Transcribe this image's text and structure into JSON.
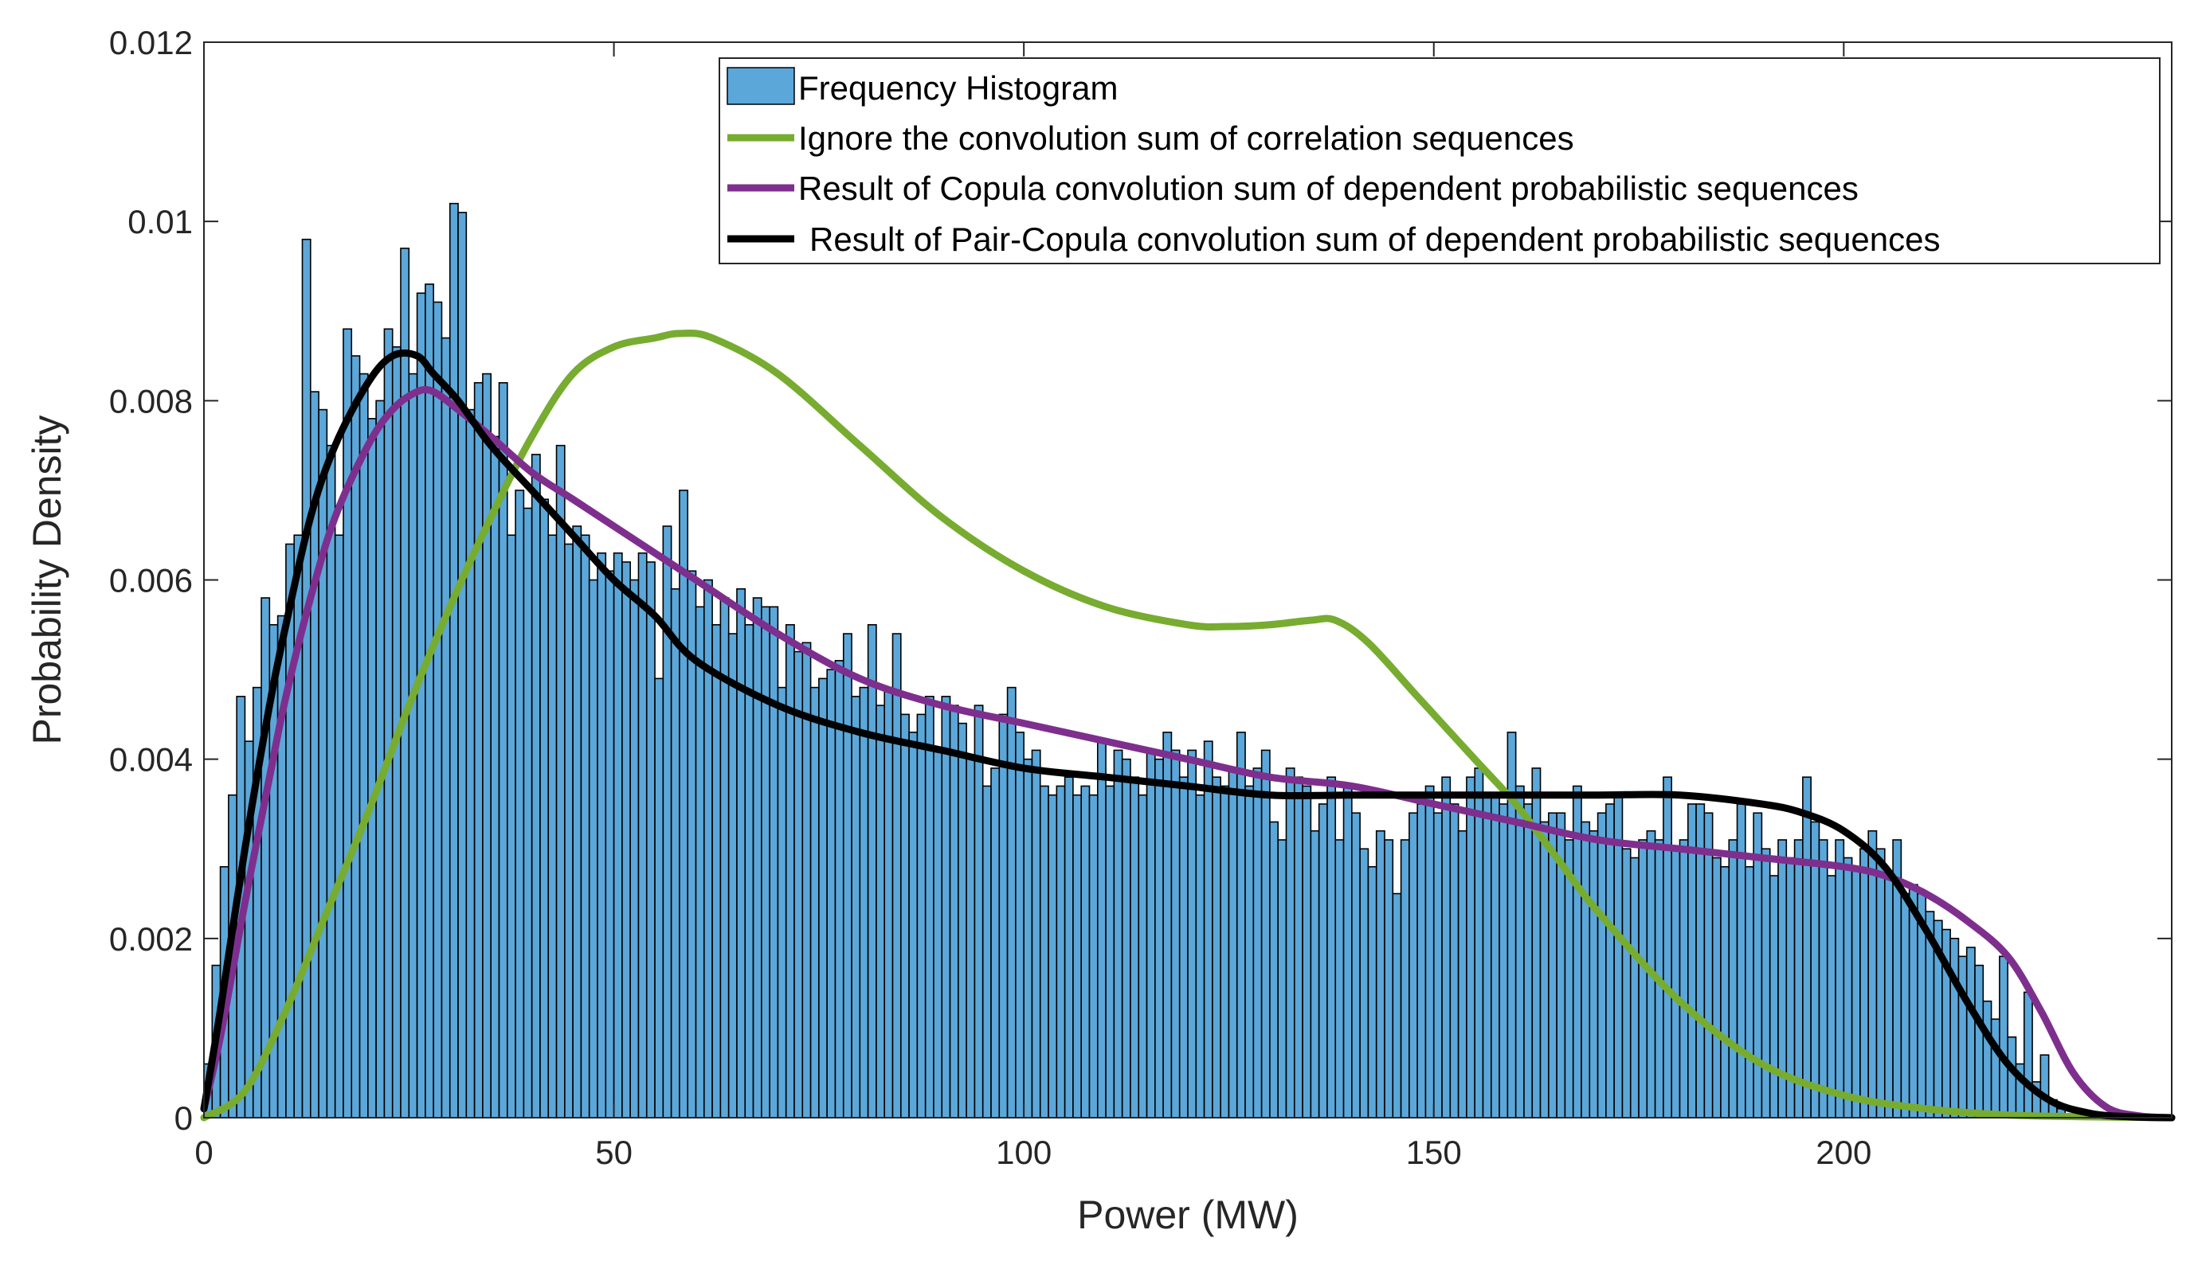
{
  "chart_data": {
    "type": "bar",
    "xlabel": "Power (MW)",
    "ylabel": "Probability Density",
    "xlim": [
      0,
      240
    ],
    "ylim": [
      0,
      0.012
    ],
    "x_ticks": [
      0,
      50,
      100,
      150,
      200
    ],
    "x_tick_labels": [
      "0",
      "50",
      "100",
      "150",
      "200"
    ],
    "y_ticks": [
      0,
      0.002,
      0.004,
      0.006,
      0.008,
      0.01,
      0.012
    ],
    "y_tick_labels": [
      "0",
      "0.002",
      "0.004",
      "0.006",
      "0.008",
      "0.01",
      "0.012"
    ],
    "legend_position": "top-right",
    "histogram": {
      "name": "Frequency Histogram",
      "color": "#5ba7d9",
      "edge_color": "#000000",
      "bin_width": 1,
      "bins": [
        [
          0,
          0.0006
        ],
        [
          1,
          0.0017
        ],
        [
          2,
          0.0028
        ],
        [
          3,
          0.0036
        ],
        [
          4,
          0.0047
        ],
        [
          5,
          0.0042
        ],
        [
          6,
          0.0048
        ],
        [
          7,
          0.0058
        ],
        [
          8,
          0.0055
        ],
        [
          9,
          0.0056
        ],
        [
          10,
          0.0064
        ],
        [
          11,
          0.0065
        ],
        [
          12,
          0.0098
        ],
        [
          13,
          0.0081
        ],
        [
          14,
          0.0079
        ],
        [
          15,
          0.0075
        ],
        [
          16,
          0.0065
        ],
        [
          17,
          0.0088
        ],
        [
          18,
          0.0085
        ],
        [
          19,
          0.0083
        ],
        [
          20,
          0.0078
        ],
        [
          21,
          0.008
        ],
        [
          22,
          0.0088
        ],
        [
          23,
          0.0086
        ],
        [
          24,
          0.0097
        ],
        [
          25,
          0.0083
        ],
        [
          26,
          0.0092
        ],
        [
          27,
          0.0093
        ],
        [
          28,
          0.0091
        ],
        [
          29,
          0.0087
        ],
        [
          30,
          0.0102
        ],
        [
          31,
          0.0101
        ],
        [
          32,
          0.0079
        ],
        [
          33,
          0.0082
        ],
        [
          34,
          0.0083
        ],
        [
          35,
          0.0076
        ],
        [
          36,
          0.0082
        ],
        [
          37,
          0.0065
        ],
        [
          38,
          0.007
        ],
        [
          39,
          0.0068
        ],
        [
          40,
          0.0074
        ],
        [
          41,
          0.0069
        ],
        [
          42,
          0.0065
        ],
        [
          43,
          0.0075
        ],
        [
          44,
          0.0064
        ],
        [
          45,
          0.0066
        ],
        [
          46,
          0.0065
        ],
        [
          47,
          0.006
        ],
        [
          48,
          0.0063
        ],
        [
          49,
          0.0061
        ],
        [
          50,
          0.0063
        ],
        [
          51,
          0.0062
        ],
        [
          52,
          0.006
        ],
        [
          53,
          0.0063
        ],
        [
          54,
          0.0062
        ],
        [
          55,
          0.0049
        ],
        [
          56,
          0.0066
        ],
        [
          57,
          0.0059
        ],
        [
          58,
          0.007
        ],
        [
          59,
          0.0061
        ],
        [
          60,
          0.0057
        ],
        [
          61,
          0.006
        ],
        [
          62,
          0.0055
        ],
        [
          63,
          0.0058
        ],
        [
          64,
          0.0054
        ],
        [
          65,
          0.0059
        ],
        [
          66,
          0.0055
        ],
        [
          67,
          0.0058
        ],
        [
          68,
          0.0057
        ],
        [
          69,
          0.0057
        ],
        [
          70,
          0.0048
        ],
        [
          71,
          0.0055
        ],
        [
          72,
          0.0052
        ],
        [
          73,
          0.0053
        ],
        [
          74,
          0.0048
        ],
        [
          75,
          0.0049
        ],
        [
          76,
          0.005
        ],
        [
          77,
          0.0051
        ],
        [
          78,
          0.0054
        ],
        [
          79,
          0.0047
        ],
        [
          80,
          0.0048
        ],
        [
          81,
          0.0055
        ],
        [
          82,
          0.0046
        ],
        [
          83,
          0.0048
        ],
        [
          84,
          0.0054
        ],
        [
          85,
          0.0045
        ],
        [
          86,
          0.0043
        ],
        [
          87,
          0.0045
        ],
        [
          88,
          0.0047
        ],
        [
          89,
          0.0041
        ],
        [
          90,
          0.0047
        ],
        [
          91,
          0.0046
        ],
        [
          92,
          0.0044
        ],
        [
          93,
          0.004
        ],
        [
          94,
          0.0046
        ],
        [
          95,
          0.0037
        ],
        [
          96,
          0.0039
        ],
        [
          97,
          0.0045
        ],
        [
          98,
          0.0048
        ],
        [
          99,
          0.0043
        ],
        [
          100,
          0.004
        ],
        [
          101,
          0.0041
        ],
        [
          102,
          0.0037
        ],
        [
          103,
          0.0036
        ],
        [
          104,
          0.0037
        ],
        [
          105,
          0.0038
        ],
        [
          106,
          0.0036
        ],
        [
          107,
          0.0037
        ],
        [
          108,
          0.0036
        ],
        [
          109,
          0.0042
        ],
        [
          110,
          0.0037
        ],
        [
          111,
          0.0041
        ],
        [
          112,
          0.004
        ],
        [
          113,
          0.0038
        ],
        [
          114,
          0.0036
        ],
        [
          115,
          0.0041
        ],
        [
          116,
          0.004
        ],
        [
          117,
          0.0043
        ],
        [
          118,
          0.0041
        ],
        [
          119,
          0.0038
        ],
        [
          120,
          0.0041
        ],
        [
          121,
          0.0036
        ],
        [
          122,
          0.0042
        ],
        [
          123,
          0.0038
        ],
        [
          124,
          0.0037
        ],
        [
          125,
          0.0039
        ],
        [
          126,
          0.0043
        ],
        [
          127,
          0.0037
        ],
        [
          128,
          0.0039
        ],
        [
          129,
          0.0041
        ],
        [
          130,
          0.0033
        ],
        [
          131,
          0.0031
        ],
        [
          132,
          0.0039
        ],
        [
          133,
          0.0038
        ],
        [
          134,
          0.0037
        ],
        [
          135,
          0.0032
        ],
        [
          136,
          0.0035
        ],
        [
          137,
          0.0038
        ],
        [
          138,
          0.0031
        ],
        [
          139,
          0.0037
        ],
        [
          140,
          0.0034
        ],
        [
          141,
          0.003
        ],
        [
          142,
          0.0028
        ],
        [
          143,
          0.0032
        ],
        [
          144,
          0.0031
        ],
        [
          145,
          0.0025
        ],
        [
          146,
          0.0031
        ],
        [
          147,
          0.0034
        ],
        [
          148,
          0.0035
        ],
        [
          149,
          0.0037
        ],
        [
          150,
          0.0034
        ],
        [
          151,
          0.0038
        ],
        [
          152,
          0.0035
        ],
        [
          153,
          0.0032
        ],
        [
          154,
          0.0038
        ],
        [
          155,
          0.0039
        ],
        [
          156,
          0.0036
        ],
        [
          157,
          0.0036
        ],
        [
          158,
          0.0035
        ],
        [
          159,
          0.0043
        ],
        [
          160,
          0.0037
        ],
        [
          161,
          0.0035
        ],
        [
          162,
          0.0039
        ],
        [
          163,
          0.0033
        ],
        [
          164,
          0.0034
        ],
        [
          165,
          0.0034
        ],
        [
          166,
          0.0031
        ],
        [
          167,
          0.0037
        ],
        [
          168,
          0.0033
        ],
        [
          169,
          0.0032
        ],
        [
          170,
          0.0034
        ],
        [
          171,
          0.0035
        ],
        [
          172,
          0.0036
        ],
        [
          173,
          0.003
        ],
        [
          174,
          0.0029
        ],
        [
          175,
          0.0031
        ],
        [
          176,
          0.0032
        ],
        [
          177,
          0.0031
        ],
        [
          178,
          0.0038
        ],
        [
          179,
          0.003
        ],
        [
          180,
          0.0031
        ],
        [
          181,
          0.0035
        ],
        [
          182,
          0.0035
        ],
        [
          183,
          0.0034
        ],
        [
          184,
          0.0029
        ],
        [
          185,
          0.0028
        ],
        [
          186,
          0.0031
        ],
        [
          187,
          0.0035
        ],
        [
          188,
          0.0028
        ],
        [
          189,
          0.0034
        ],
        [
          190,
          0.003
        ],
        [
          191,
          0.0027
        ],
        [
          192,
          0.0031
        ],
        [
          193,
          0.0029
        ],
        [
          194,
          0.0031
        ],
        [
          195,
          0.0038
        ],
        [
          196,
          0.0033
        ],
        [
          197,
          0.0031
        ],
        [
          198,
          0.0027
        ],
        [
          199,
          0.0031
        ],
        [
          200,
          0.0029
        ],
        [
          201,
          0.0028
        ],
        [
          202,
          0.003
        ],
        [
          203,
          0.0032
        ],
        [
          204,
          0.003
        ],
        [
          205,
          0.0027
        ],
        [
          206,
          0.0031
        ],
        [
          207,
          0.0025
        ],
        [
          208,
          0.0026
        ],
        [
          209,
          0.0025
        ],
        [
          210,
          0.0023
        ],
        [
          211,
          0.0022
        ],
        [
          212,
          0.0021
        ],
        [
          213,
          0.002
        ],
        [
          214,
          0.0018
        ],
        [
          215,
          0.0019
        ],
        [
          216,
          0.0017
        ],
        [
          217,
          0.0013
        ],
        [
          218,
          0.0011
        ],
        [
          219,
          0.0018
        ],
        [
          220,
          0.0009
        ],
        [
          221,
          0.0006
        ],
        [
          222,
          0.0014
        ],
        [
          223,
          0.0004
        ],
        [
          224,
          0.0007
        ],
        [
          225,
          0.0002
        ],
        [
          226,
          0.0001
        ]
      ]
    },
    "series": [
      {
        "name": "Ignore the convolution sum of correlation sequences",
        "color": "#77ac30",
        "x": [
          0,
          5,
          10,
          15,
          20,
          25,
          30,
          35,
          40,
          45,
          50,
          55,
          58,
          62,
          70,
          80,
          90,
          100,
          110,
          120,
          125,
          130,
          135,
          138,
          142,
          148,
          155,
          160,
          165,
          170,
          180,
          190,
          200,
          210,
          220,
          230,
          240
        ],
        "y": [
          0,
          0.0003,
          0.0012,
          0.0023,
          0.0034,
          0.0046,
          0.0057,
          0.0067,
          0.0076,
          0.0083,
          0.0086,
          0.0087,
          0.00875,
          0.0087,
          0.0083,
          0.0075,
          0.0067,
          0.0061,
          0.0057,
          0.0055,
          0.00548,
          0.0055,
          0.00555,
          0.00555,
          0.0053,
          0.0047,
          0.004,
          0.0035,
          0.0029,
          0.0023,
          0.0013,
          0.0006,
          0.00025,
          0.0001,
          3e-05,
          1e-05,
          0
        ]
      },
      {
        "name": "Result of Copula convolution sum of dependent probabilistic sequences",
        "color": "#7e2f8e",
        "x": [
          0,
          2,
          5,
          8,
          10,
          13,
          16,
          20,
          23,
          26,
          28,
          31,
          35,
          40,
          45,
          50,
          55,
          60,
          70,
          80,
          90,
          100,
          110,
          120,
          130,
          140,
          150,
          160,
          170,
          180,
          190,
          200,
          205,
          210,
          215,
          220,
          224,
          228,
          232,
          236,
          240
        ],
        "y": [
          0.0001,
          0.0009,
          0.0024,
          0.0038,
          0.0047,
          0.0058,
          0.0067,
          0.0075,
          0.0079,
          0.0081,
          0.0081,
          0.0079,
          0.0076,
          0.0072,
          0.0069,
          0.0066,
          0.0063,
          0.006,
          0.0054,
          0.0049,
          0.0046,
          0.0044,
          0.0042,
          0.004,
          0.0038,
          0.0037,
          0.0035,
          0.0033,
          0.0031,
          0.003,
          0.0029,
          0.0028,
          0.0027,
          0.0025,
          0.0022,
          0.0018,
          0.0012,
          0.0005,
          0.00012,
          2e-05,
          0
        ]
      },
      {
        "name": "Result of Pair-Copula convolution sum of dependent probabilistic sequences",
        "color": "#000000",
        "x": [
          0,
          2,
          5,
          8,
          10,
          13,
          16,
          20,
          23,
          26,
          28,
          31,
          35,
          40,
          45,
          50,
          55,
          60,
          70,
          80,
          90,
          100,
          110,
          120,
          130,
          140,
          150,
          160,
          170,
          180,
          190,
          195,
          200,
          205,
          210,
          215,
          220,
          225,
          230,
          235,
          240
        ],
        "y": [
          0.0001,
          0.0012,
          0.003,
          0.0046,
          0.0055,
          0.0067,
          0.0075,
          0.0082,
          0.0085,
          0.0085,
          0.0083,
          0.008,
          0.0075,
          0.007,
          0.0065,
          0.006,
          0.0056,
          0.0051,
          0.0046,
          0.0043,
          0.0041,
          0.0039,
          0.0038,
          0.0037,
          0.0036,
          0.0036,
          0.0036,
          0.0036,
          0.0036,
          0.0036,
          0.0035,
          0.0034,
          0.0032,
          0.0028,
          0.0021,
          0.0013,
          0.0006,
          0.0002,
          5e-05,
          1e-05,
          0
        ]
      }
    ]
  }
}
